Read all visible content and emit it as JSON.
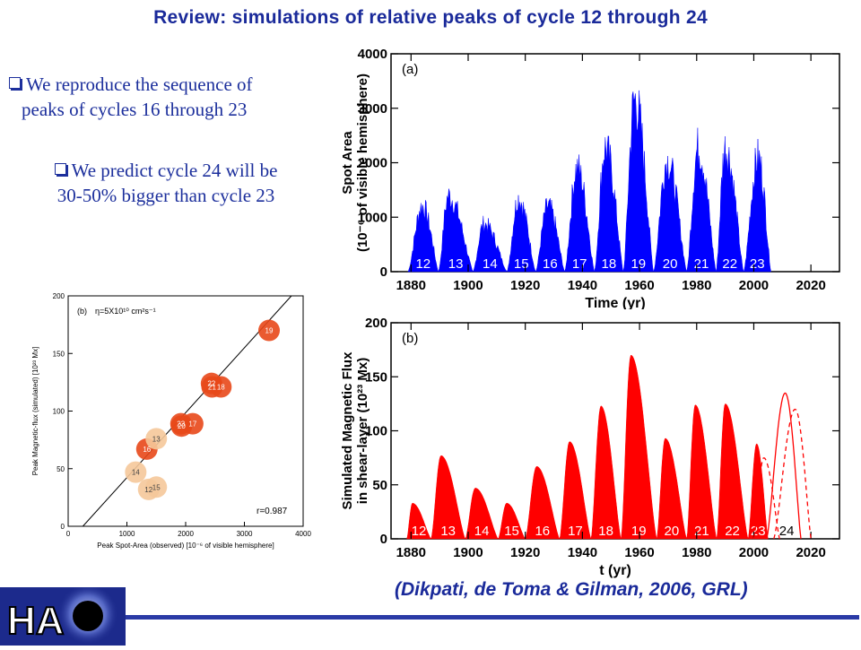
{
  "title": "Review: simulations of relative peaks of cycle 12 through 24",
  "bullets": [
    {
      "line1": "We reproduce the sequence of",
      "line2": "peaks of cycles 16 through 23"
    },
    {
      "line1": "We predict cycle 24 will be",
      "line2": "30-50% bigger than cycle 23"
    }
  ],
  "citation": "(Dikpati, de Toma & Gilman, 2006, GRL)",
  "logo": {
    "text": "HA",
    "icon": "sun-disk-icon"
  },
  "colors": {
    "title": "#1a2a9a",
    "blue_series": "#0000ff",
    "red_series": "#ff0000",
    "scatter": [
      "#e8481a",
      "#f5c89a"
    ]
  },
  "chart_data": [
    {
      "type": "area",
      "panel_label": "(a)",
      "xlabel": "Time (yr)",
      "ylabel_line1": "Spot Area",
      "ylabel_line2": "(10⁻⁶ of visible hemisphere)",
      "xlim": [
        1873,
        2030
      ],
      "ylim": [
        0,
        4000
      ],
      "xticks": [
        "1880",
        "1900",
        "1920",
        "1940",
        "1960",
        "1980",
        "2000",
        "2020"
      ],
      "yticks": [
        "0",
        "1000",
        "2000",
        "3000",
        "4000"
      ],
      "color": "#0000ff",
      "cycles": [
        {
          "label": "12",
          "start": 1878.9,
          "peak_year": 1883.9,
          "peak": 1300,
          "end": 1889.6
        },
        {
          "label": "13",
          "start": 1889.6,
          "peak_year": 1893.1,
          "peak": 1500,
          "end": 1901.7
        },
        {
          "label": "14",
          "start": 1901.7,
          "peak_year": 1905.5,
          "peak": 950,
          "end": 1913.6
        },
        {
          "label": "15",
          "start": 1913.6,
          "peak_year": 1917.6,
          "peak": 1450,
          "end": 1923.6
        },
        {
          "label": "16",
          "start": 1923.6,
          "peak_year": 1927.9,
          "peak": 1300,
          "end": 1933.8
        },
        {
          "label": "17",
          "start": 1933.8,
          "peak_year": 1938.1,
          "peak": 2050,
          "end": 1944.2
        },
        {
          "label": "18",
          "start": 1944.2,
          "peak_year": 1948.0,
          "peak": 2450,
          "end": 1954.3
        },
        {
          "label": "19",
          "start": 1954.3,
          "peak_year": 1958.3,
          "peak": 3400,
          "end": 1964.9
        },
        {
          "label": "20",
          "start": 1964.9,
          "peak_year": 1969.6,
          "peak": 2200,
          "end": 1976.5
        },
        {
          "label": "21",
          "start": 1976.5,
          "peak_year": 1980.5,
          "peak": 2450,
          "end": 1986.8
        },
        {
          "label": "22",
          "start": 1986.8,
          "peak_year": 1990.0,
          "peak": 2450,
          "end": 1996.4
        },
        {
          "label": "23",
          "start": 1996.4,
          "peak_year": 2001.5,
          "peak": 2250,
          "end": 2006.0
        }
      ]
    },
    {
      "type": "area",
      "panel_label": "(b)",
      "xlabel": "t (yr)",
      "ylabel_line1": "Simulated Magnetic Flux",
      "ylabel_line2": "in shear-layer (10²³ Mx)",
      "xlim": [
        1873,
        2030
      ],
      "ylim": [
        0,
        200
      ],
      "xticks": [
        "1880",
        "1900",
        "1920",
        "1940",
        "1960",
        "1980",
        "2000",
        "2020"
      ],
      "yticks": [
        "0",
        "50",
        "100",
        "150",
        "200"
      ],
      "color": "#ff0000",
      "cycles": [
        {
          "label": "12",
          "start": 1878.5,
          "peak_year": 1880.5,
          "peak": 33,
          "end": 1887.0
        },
        {
          "label": "13",
          "start": 1887.0,
          "peak_year": 1890.5,
          "peak": 77,
          "end": 1899.0
        },
        {
          "label": "14",
          "start": 1899.0,
          "peak_year": 1902.5,
          "peak": 47,
          "end": 1910.5
        },
        {
          "label": "15",
          "start": 1910.5,
          "peak_year": 1913.5,
          "peak": 33,
          "end": 1920.0
        },
        {
          "label": "16",
          "start": 1920.0,
          "peak_year": 1924.0,
          "peak": 67,
          "end": 1932.0
        },
        {
          "label": "17",
          "start": 1932.0,
          "peak_year": 1935.5,
          "peak": 90,
          "end": 1943.0
        },
        {
          "label": "18",
          "start": 1943.0,
          "peak_year": 1946.5,
          "peak": 123,
          "end": 1953.5
        },
        {
          "label": "19",
          "start": 1953.5,
          "peak_year": 1957.0,
          "peak": 170,
          "end": 1966.0
        },
        {
          "label": "20",
          "start": 1966.0,
          "peak_year": 1969.0,
          "peak": 93,
          "end": 1976.5
        },
        {
          "label": "21",
          "start": 1976.5,
          "peak_year": 1979.5,
          "peak": 124,
          "end": 1987.0
        },
        {
          "label": "22",
          "start": 1987.0,
          "peak_year": 1990.0,
          "peak": 125,
          "end": 1998.0
        },
        {
          "label": "23",
          "start": 1998.0,
          "peak_year": 2001.0,
          "peak": 88,
          "end": 2005.0
        }
      ],
      "prediction": {
        "label": "24",
        "solid": {
          "start": 2004.5,
          "peak_year": 2011.0,
          "peak": 135,
          "end": 2016.5
        },
        "dashed": [
          {
            "start": 2000.0,
            "peak_year": 2003.5,
            "peak": 75,
            "end": 2009.0
          },
          {
            "start": 2007.0,
            "peak_year": 2014.5,
            "peak": 120,
            "end": 2020.0
          }
        ]
      }
    },
    {
      "type": "scatter",
      "panel_label": "(b)",
      "annotation": "η=5X10¹⁰ cm²s⁻¹",
      "xlabel": "Peak Spot-Area (observed) [10⁻⁶ of visible hemisphere]",
      "ylabel": "Peak Magnetic-flux (simulated) [10²³ Mx]",
      "xlim": [
        0,
        4000
      ],
      "ylim": [
        0,
        200
      ],
      "xticks": [
        "0",
        "1000",
        "2000",
        "3000",
        "4000"
      ],
      "yticks": [
        "0",
        "50",
        "100",
        "150",
        "200"
      ],
      "r_label": "r=0.987",
      "fit_line": [
        [
          250,
          0
        ],
        [
          3800,
          200
        ]
      ],
      "points": [
        {
          "label": "12",
          "x": 1370,
          "y": 32,
          "group": "light"
        },
        {
          "label": "15",
          "x": 1500,
          "y": 34,
          "group": "light"
        },
        {
          "label": "14",
          "x": 1150,
          "y": 47,
          "group": "light"
        },
        {
          "label": "16",
          "x": 1340,
          "y": 67,
          "group": "dark"
        },
        {
          "label": "13",
          "x": 1500,
          "y": 76,
          "group": "light"
        },
        {
          "label": "20",
          "x": 1930,
          "y": 87,
          "group": "dark"
        },
        {
          "label": "23",
          "x": 1920,
          "y": 89,
          "group": "dark"
        },
        {
          "label": "17",
          "x": 2120,
          "y": 89,
          "group": "dark"
        },
        {
          "label": "22",
          "x": 2440,
          "y": 124,
          "group": "dark"
        },
        {
          "label": "21",
          "x": 2450,
          "y": 121,
          "group": "dark"
        },
        {
          "label": "18",
          "x": 2600,
          "y": 121,
          "group": "dark"
        },
        {
          "label": "19",
          "x": 3420,
          "y": 170,
          "group": "dark"
        }
      ]
    }
  ]
}
